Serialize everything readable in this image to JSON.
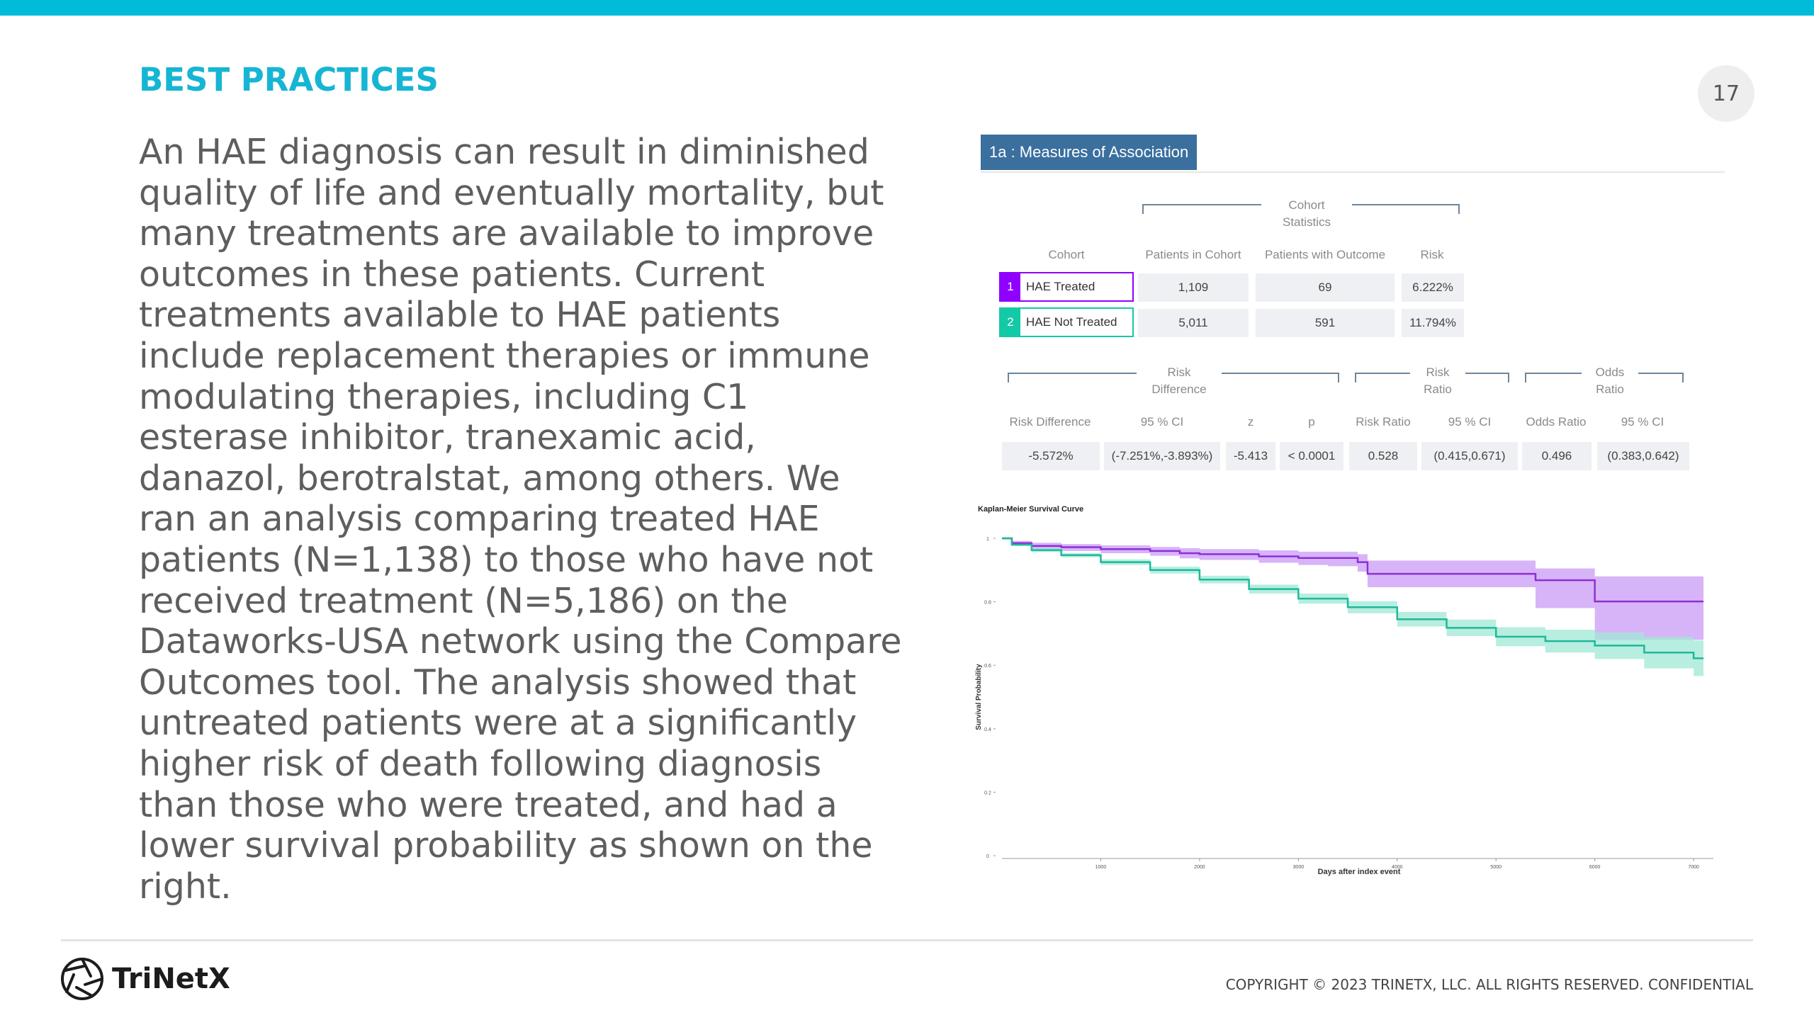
{
  "header": {
    "title": "BEST PRACTICES",
    "page_number": "17"
  },
  "body": {
    "paragraph": "An HAE diagnosis can result in diminished quality of life and eventually mortality, but many treatments are available to improve outcomes in these patients. Current treatments available to HAE patients include replacement therapies or immune modulating therapies, including C1 esterase inhibitor, tranexamic acid, danazol, berotralstat, among others. We ran an analysis comparing treated HAE patients (N=1,138) to those who have not received treatment (N=5,186) on the Dataworks-USA network using the Compare Outcomes tool. The analysis showed that untreated patients were at a significantly higher risk of death following diagnosis than those who were treated, and had a lower survival probability as shown on the right."
  },
  "measures": {
    "tab_label": "1a : Measures of Association",
    "cohort_stats_group": [
      "Cohort",
      "Statistics"
    ],
    "headers": {
      "cohort": "Cohort",
      "patients_in_cohort": "Patients in Cohort",
      "patients_with_outcome": "Patients with Outcome",
      "risk": "Risk"
    },
    "cohorts": [
      {
        "num": "1",
        "name": "HAE Treated",
        "patients": "1,109",
        "outcome": "69",
        "risk": "6.222%",
        "color": "#8f00ff"
      },
      {
        "num": "2",
        "name": "HAE Not Treated",
        "patients": "5,011",
        "outcome": "591",
        "risk": "11.794%",
        "color": "#14c9a6"
      }
    ],
    "groups": {
      "risk_difference": [
        "Risk",
        "Difference"
      ],
      "risk_ratio": [
        "Risk",
        "Ratio"
      ],
      "odds_ratio": [
        "Odds",
        "Ratio"
      ]
    },
    "stat_headers": {
      "risk_difference": "Risk Difference",
      "rd_ci": "95 % CI",
      "z": "z",
      "p": "p",
      "risk_ratio": "Risk Ratio",
      "rr_ci": "95 % CI",
      "odds_ratio": "Odds Ratio",
      "or_ci": "95 % CI"
    },
    "stats": {
      "risk_difference": "-5.572%",
      "rd_ci": "(-7.251%,-3.893%)",
      "z": "-5.413",
      "p": "< 0.0001",
      "risk_ratio": "0.528",
      "rr_ci": "(0.415,0.671)",
      "odds_ratio": "0.496",
      "or_ci": "(0.383,0.642)"
    }
  },
  "chart_data": {
    "type": "line",
    "title": "Kaplan-Meier Survival Curve",
    "xlabel": "Days after index event",
    "ylabel": "Survival Probability",
    "xlim": [
      0,
      7200
    ],
    "ylim": [
      0,
      1
    ],
    "x_ticks": [
      "1000",
      "2000",
      "3000",
      "4000",
      "5000",
      "6000",
      "7000"
    ],
    "y_ticks": [
      "0",
      "0.2",
      "0.4",
      "0.6",
      "0.8",
      "1"
    ],
    "series": [
      {
        "color": "#8f2fd6",
        "band_color": "#c99bf5",
        "x": [
          0,
          100,
          300,
          600,
          1000,
          1500,
          1800,
          2000,
          2600,
          3000,
          3300,
          3600,
          3700,
          4000,
          4500,
          5000,
          5400,
          5800,
          6000,
          6400,
          6800,
          7100
        ],
        "y": [
          1.0,
          0.985,
          0.976,
          0.972,
          0.966,
          0.96,
          0.953,
          0.95,
          0.943,
          0.938,
          0.938,
          0.925,
          0.888,
          0.888,
          0.888,
          0.888,
          0.868,
          0.868,
          0.801,
          0.801,
          0.801,
          0.801
        ],
        "lower": [
          1.0,
          0.977,
          0.966,
          0.96,
          0.953,
          0.945,
          0.937,
          0.932,
          0.923,
          0.916,
          0.912,
          0.895,
          0.846,
          0.846,
          0.846,
          0.846,
          0.78,
          0.78,
          0.68,
          0.68,
          0.68,
          0.68
        ],
        "upper": [
          1.0,
          0.992,
          0.986,
          0.982,
          0.978,
          0.973,
          0.969,
          0.966,
          0.962,
          0.958,
          0.958,
          0.95,
          0.93,
          0.93,
          0.93,
          0.93,
          0.905,
          0.905,
          0.88,
          0.88,
          0.88,
          0.88
        ]
      },
      {
        "color": "#1fb89a",
        "band_color": "#9fe8d6",
        "x": [
          0,
          100,
          300,
          600,
          1000,
          1500,
          2000,
          2500,
          3000,
          3500,
          4000,
          4500,
          5000,
          5500,
          6000,
          6500,
          7000,
          7100
        ],
        "y": [
          1.0,
          0.98,
          0.963,
          0.947,
          0.925,
          0.9,
          0.87,
          0.84,
          0.81,
          0.783,
          0.745,
          0.718,
          0.69,
          0.676,
          0.662,
          0.64,
          0.622,
          0.622
        ],
        "lower": [
          1.0,
          0.976,
          0.957,
          0.94,
          0.916,
          0.889,
          0.858,
          0.826,
          0.794,
          0.764,
          0.722,
          0.692,
          0.66,
          0.64,
          0.62,
          0.59,
          0.566,
          0.566
        ],
        "upper": [
          1.0,
          0.984,
          0.969,
          0.954,
          0.934,
          0.911,
          0.882,
          0.854,
          0.826,
          0.802,
          0.768,
          0.744,
          0.72,
          0.712,
          0.704,
          0.69,
          0.678,
          0.678
        ]
      }
    ]
  },
  "footer": {
    "logo_text": "TriNetX",
    "copyright": "COPYRIGHT © 2023 TRINETX, LLC. ALL RIGHTS RESERVED. CONFIDENTIAL"
  },
  "colors": {
    "accent": "#00bcd9",
    "title": "#16b5d4",
    "tab": "#3a6f9e"
  }
}
